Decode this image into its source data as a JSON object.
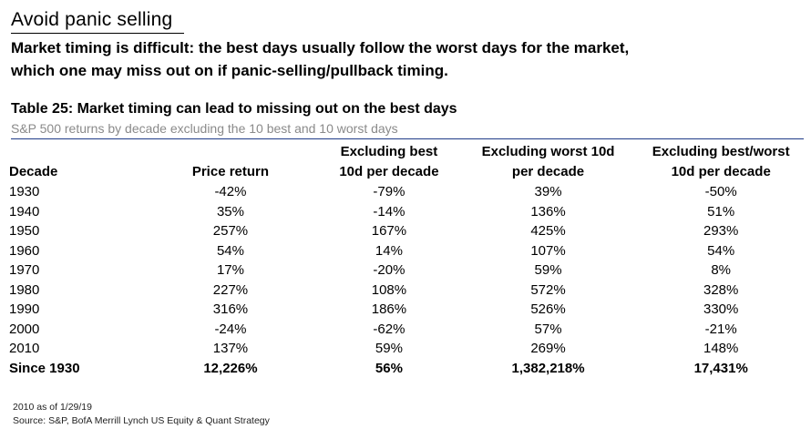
{
  "header": {
    "title": "Avoid panic selling",
    "subtitle": "Market timing is difficult: the best days usually follow the worst days for the market, which one may miss out on if panic-selling/pullback timing."
  },
  "table": {
    "title": "Table 25: Market timing can lead to missing out on the best days",
    "subtitle": "S&P 500 returns by decade excluding the 10 best and 10 worst days",
    "columns": [
      "Decade",
      "Price return",
      "Excluding best 10d per decade",
      "Excluding worst 10d per decade",
      "Excluding best/worst 10d per decade"
    ],
    "rows": [
      [
        "1930",
        "-42%",
        "-79%",
        "39%",
        "-50%"
      ],
      [
        "1940",
        "35%",
        "-14%",
        "136%",
        "51%"
      ],
      [
        "1950",
        "257%",
        "167%",
        "425%",
        "293%"
      ],
      [
        "1960",
        "54%",
        "14%",
        "107%",
        "54%"
      ],
      [
        "1970",
        "17%",
        "-20%",
        "59%",
        "8%"
      ],
      [
        "1980",
        "227%",
        "108%",
        "572%",
        "328%"
      ],
      [
        "1990",
        "316%",
        "186%",
        "526%",
        "330%"
      ],
      [
        "2000",
        "-24%",
        "-62%",
        "57%",
        "-21%"
      ],
      [
        "2010",
        "137%",
        "59%",
        "269%",
        "148%"
      ]
    ],
    "total": [
      "Since 1930",
      "12,226%",
      "56%",
      "1,382,218%",
      "17,431%"
    ]
  },
  "notes": {
    "note": "2010 as of 1/29/19",
    "source": "Source: S&P, BofA Merrill Lynch US Equity & Quant Strategy"
  },
  "colors": {
    "rule": "#1f3c88",
    "subtitle_text": "#8a8a8a"
  }
}
